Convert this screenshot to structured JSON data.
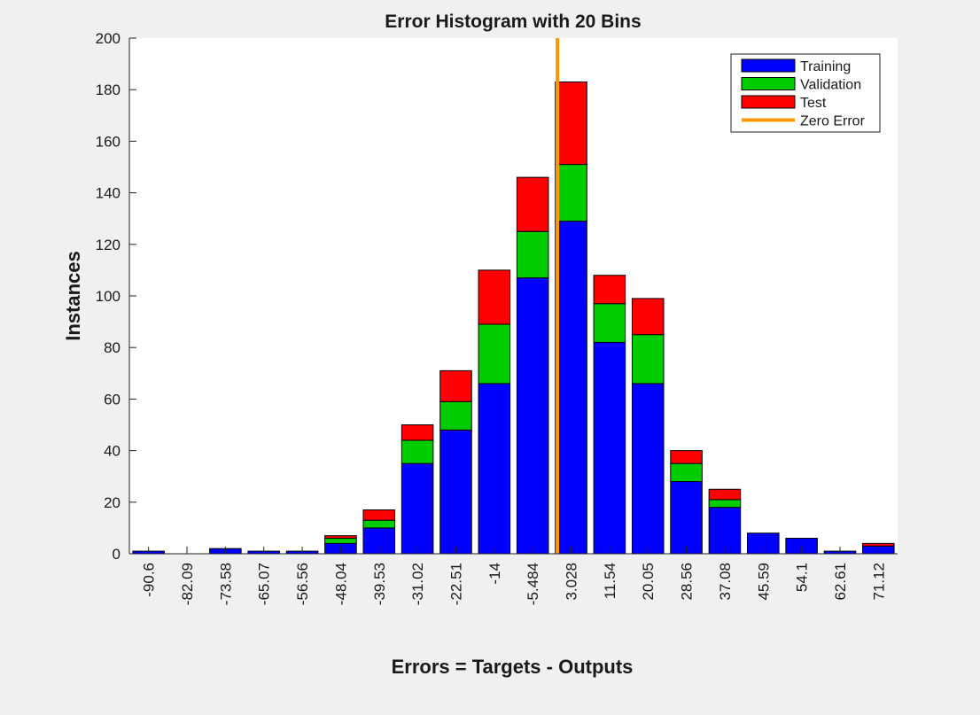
{
  "chart_data": {
    "type": "bar",
    "stacked": true,
    "title": "Error Histogram with 20 Bins",
    "xlabel": "Errors = Targets - Outputs",
    "ylabel": "Instances",
    "ylim": [
      0,
      200
    ],
    "yticks": [
      0,
      20,
      40,
      60,
      80,
      100,
      120,
      140,
      160,
      180,
      200
    ],
    "categories": [
      "-90.6",
      "-82.09",
      "-73.58",
      "-65.07",
      "-56.56",
      "-48.04",
      "-39.53",
      "-31.02",
      "-22.51",
      "-14",
      "-5.484",
      "3.028",
      "11.54",
      "20.05",
      "28.56",
      "37.08",
      "45.59",
      "54.1",
      "62.61",
      "71.12"
    ],
    "bin_centers": [
      -90.6,
      -82.09,
      -73.58,
      -65.07,
      -56.56,
      -48.04,
      -39.53,
      -31.02,
      -22.51,
      -14,
      -5.484,
      3.028,
      11.54,
      20.05,
      28.56,
      37.08,
      45.59,
      54.1,
      62.61,
      71.12
    ],
    "series": [
      {
        "name": "Training",
        "color": "#0000ff",
        "values": [
          1,
          0,
          2,
          1,
          1,
          4,
          10,
          35,
          48,
          66,
          107,
          129,
          82,
          66,
          28,
          18,
          8,
          6,
          1,
          3
        ]
      },
      {
        "name": "Validation",
        "color": "#00cc00",
        "values": [
          0,
          0,
          0,
          0,
          0,
          2,
          3,
          9,
          11,
          23,
          18,
          22,
          15,
          19,
          7,
          3,
          0,
          0,
          0,
          0
        ]
      },
      {
        "name": "Test",
        "color": "#ff0000",
        "values": [
          0,
          0,
          0,
          0,
          0,
          1,
          4,
          6,
          12,
          21,
          21,
          32,
          11,
          14,
          5,
          4,
          0,
          0,
          0,
          1
        ]
      }
    ],
    "reference_line": {
      "name": "Zero Error",
      "x": 0,
      "color": "#ff9900"
    },
    "legend": {
      "placement": "top-right",
      "entries": [
        {
          "label": "Training",
          "color": "#0000ff",
          "kind": "box"
        },
        {
          "label": "Validation",
          "color": "#00cc00",
          "kind": "box"
        },
        {
          "label": "Test",
          "color": "#ff0000",
          "kind": "box"
        },
        {
          "label": "Zero Error",
          "color": "#ff9900",
          "kind": "line"
        }
      ]
    },
    "grid": false
  }
}
